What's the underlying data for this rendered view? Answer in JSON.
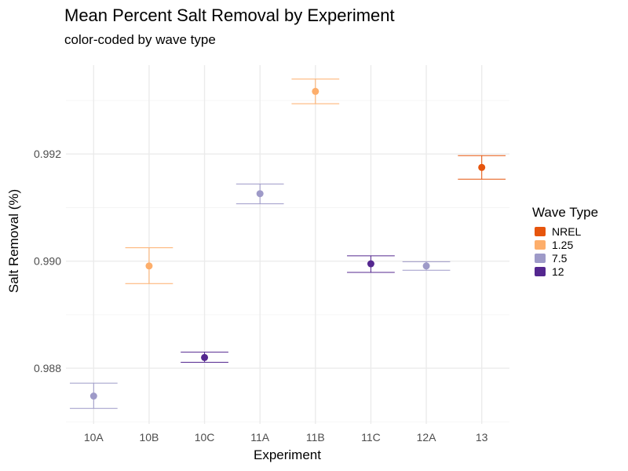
{
  "chart_data": {
    "type": "scatter",
    "title": "Mean Percent Salt Removal by Experiment",
    "subtitle": "color-coded by wave type",
    "xlabel": "Experiment",
    "ylabel": "Salt Removal (%)",
    "categories": [
      "10A",
      "10B",
      "10C",
      "11A",
      "11B",
      "11C",
      "12A",
      "13"
    ],
    "ylim": [
      0.98696,
      0.99366
    ],
    "yticks": [
      0.988,
      0.99,
      0.992
    ],
    "ytick_labels": [
      "0.988",
      "0.990",
      "0.992"
    ],
    "grid": true,
    "legend": {
      "title": "Wave Type",
      "placement": "right",
      "items": [
        {
          "label": "NREL",
          "color": "#e6550d"
        },
        {
          "label": "1.25",
          "color": "#fdae6b"
        },
        {
          "label": "7.5",
          "color": "#9e9ac8"
        },
        {
          "label": "12",
          "color": "#54278f"
        }
      ]
    },
    "points": [
      {
        "x": "10A",
        "wave": "7.5",
        "mean": 0.98748,
        "lower": 0.98725,
        "upper": 0.98772
      },
      {
        "x": "10B",
        "wave": "1.25",
        "mean": 0.98991,
        "lower": 0.98958,
        "upper": 0.99025
      },
      {
        "x": "10C",
        "wave": "12",
        "mean": 0.9882,
        "lower": 0.98811,
        "upper": 0.9883
      },
      {
        "x": "11A",
        "wave": "7.5",
        "mean": 0.99126,
        "lower": 0.99107,
        "upper": 0.99144
      },
      {
        "x": "11B",
        "wave": "1.25",
        "mean": 0.99317,
        "lower": 0.99294,
        "upper": 0.9934
      },
      {
        "x": "11C",
        "wave": "12",
        "mean": 0.98995,
        "lower": 0.98979,
        "upper": 0.9901
      },
      {
        "x": "12A",
        "wave": "7.5",
        "mean": 0.98991,
        "lower": 0.98983,
        "upper": 0.98999
      },
      {
        "x": "13",
        "wave": "NREL",
        "mean": 0.99175,
        "lower": 0.99153,
        "upper": 0.99197
      }
    ]
  }
}
